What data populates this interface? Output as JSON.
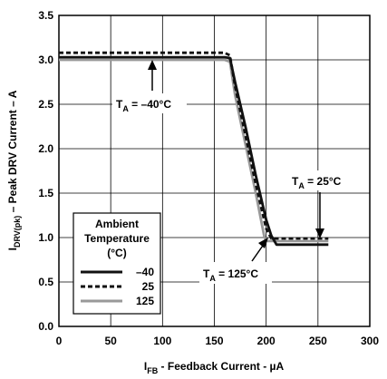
{
  "chart_data": {
    "type": "line",
    "xlabel": {
      "main": "I",
      "sub": "FB",
      "rest": " - Feedback Current - µA"
    },
    "ylabel": {
      "main": "I",
      "sub": "DRV(pk)",
      "rest": " – Peak DRV Current – A"
    },
    "xlim": [
      0,
      300
    ],
    "ylim": [
      0,
      3.5
    ],
    "xticks": [
      "0",
      "50",
      "100",
      "150",
      "200",
      "250",
      "300"
    ],
    "yticks": [
      "0.0",
      "0.5",
      "1.0",
      "1.5",
      "2.0",
      "2.5",
      "3.0",
      "3.5"
    ],
    "grid": true,
    "legend": {
      "title": "Ambient Temperature (°C)",
      "title_lines": [
        "Ambient",
        "Temperature",
        "(°C)"
      ],
      "placement": "lower-left"
    },
    "series": [
      {
        "name": "–40",
        "color": "#111111",
        "style": "solid",
        "x": [
          0,
          160,
          165,
          170,
          180,
          190,
          200,
          205,
          210,
          260
        ],
        "y": [
          3.03,
          3.03,
          3.02,
          2.75,
          2.25,
          1.7,
          1.2,
          1.02,
          0.92,
          0.92
        ]
      },
      {
        "name": "25",
        "color": "#111111",
        "style": "dashed",
        "x": [
          0,
          160,
          165,
          170,
          180,
          190,
          200,
          205,
          260
        ],
        "y": [
          3.08,
          3.08,
          3.05,
          2.7,
          2.15,
          1.6,
          1.1,
          0.99,
          0.99
        ]
      },
      {
        "name": "125",
        "color": "#999999",
        "style": "solid",
        "x": [
          0,
          160,
          165,
          170,
          180,
          190,
          198,
          200,
          260
        ],
        "y": [
          3.0,
          3.0,
          2.98,
          2.6,
          2.05,
          1.5,
          1.02,
          0.96,
          0.96
        ]
      }
    ],
    "annotations": [
      {
        "prefix": "T",
        "sub": "A",
        "text": " = –40°C"
      },
      {
        "prefix": "T",
        "sub": "A",
        "text": " = 25°C"
      },
      {
        "prefix": "T",
        "sub": "A",
        "text": " = 125°C"
      }
    ]
  }
}
